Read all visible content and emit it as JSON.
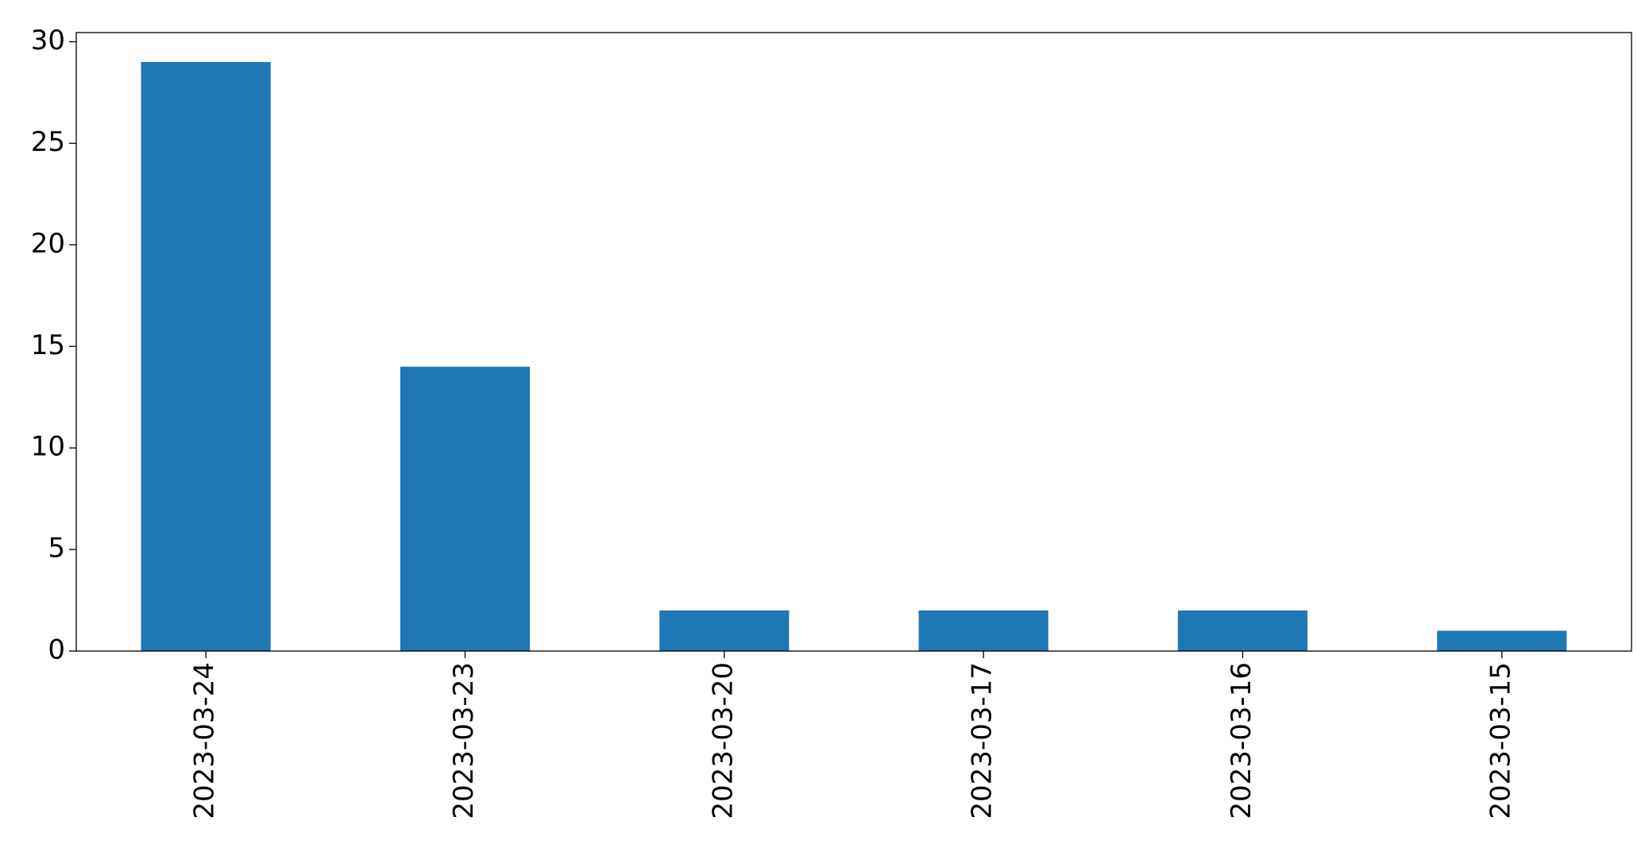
{
  "chart_data": {
    "type": "bar",
    "categories": [
      "2023-03-24",
      "2023-03-23",
      "2023-03-20",
      "2023-03-17",
      "2023-03-16",
      "2023-03-15"
    ],
    "values": [
      29,
      14,
      2,
      2,
      2,
      1
    ],
    "color": "#1f77b4",
    "ylim": [
      0,
      30.45
    ],
    "yticks": [
      0,
      5,
      10,
      15,
      20,
      25,
      30
    ],
    "grid": false
  }
}
